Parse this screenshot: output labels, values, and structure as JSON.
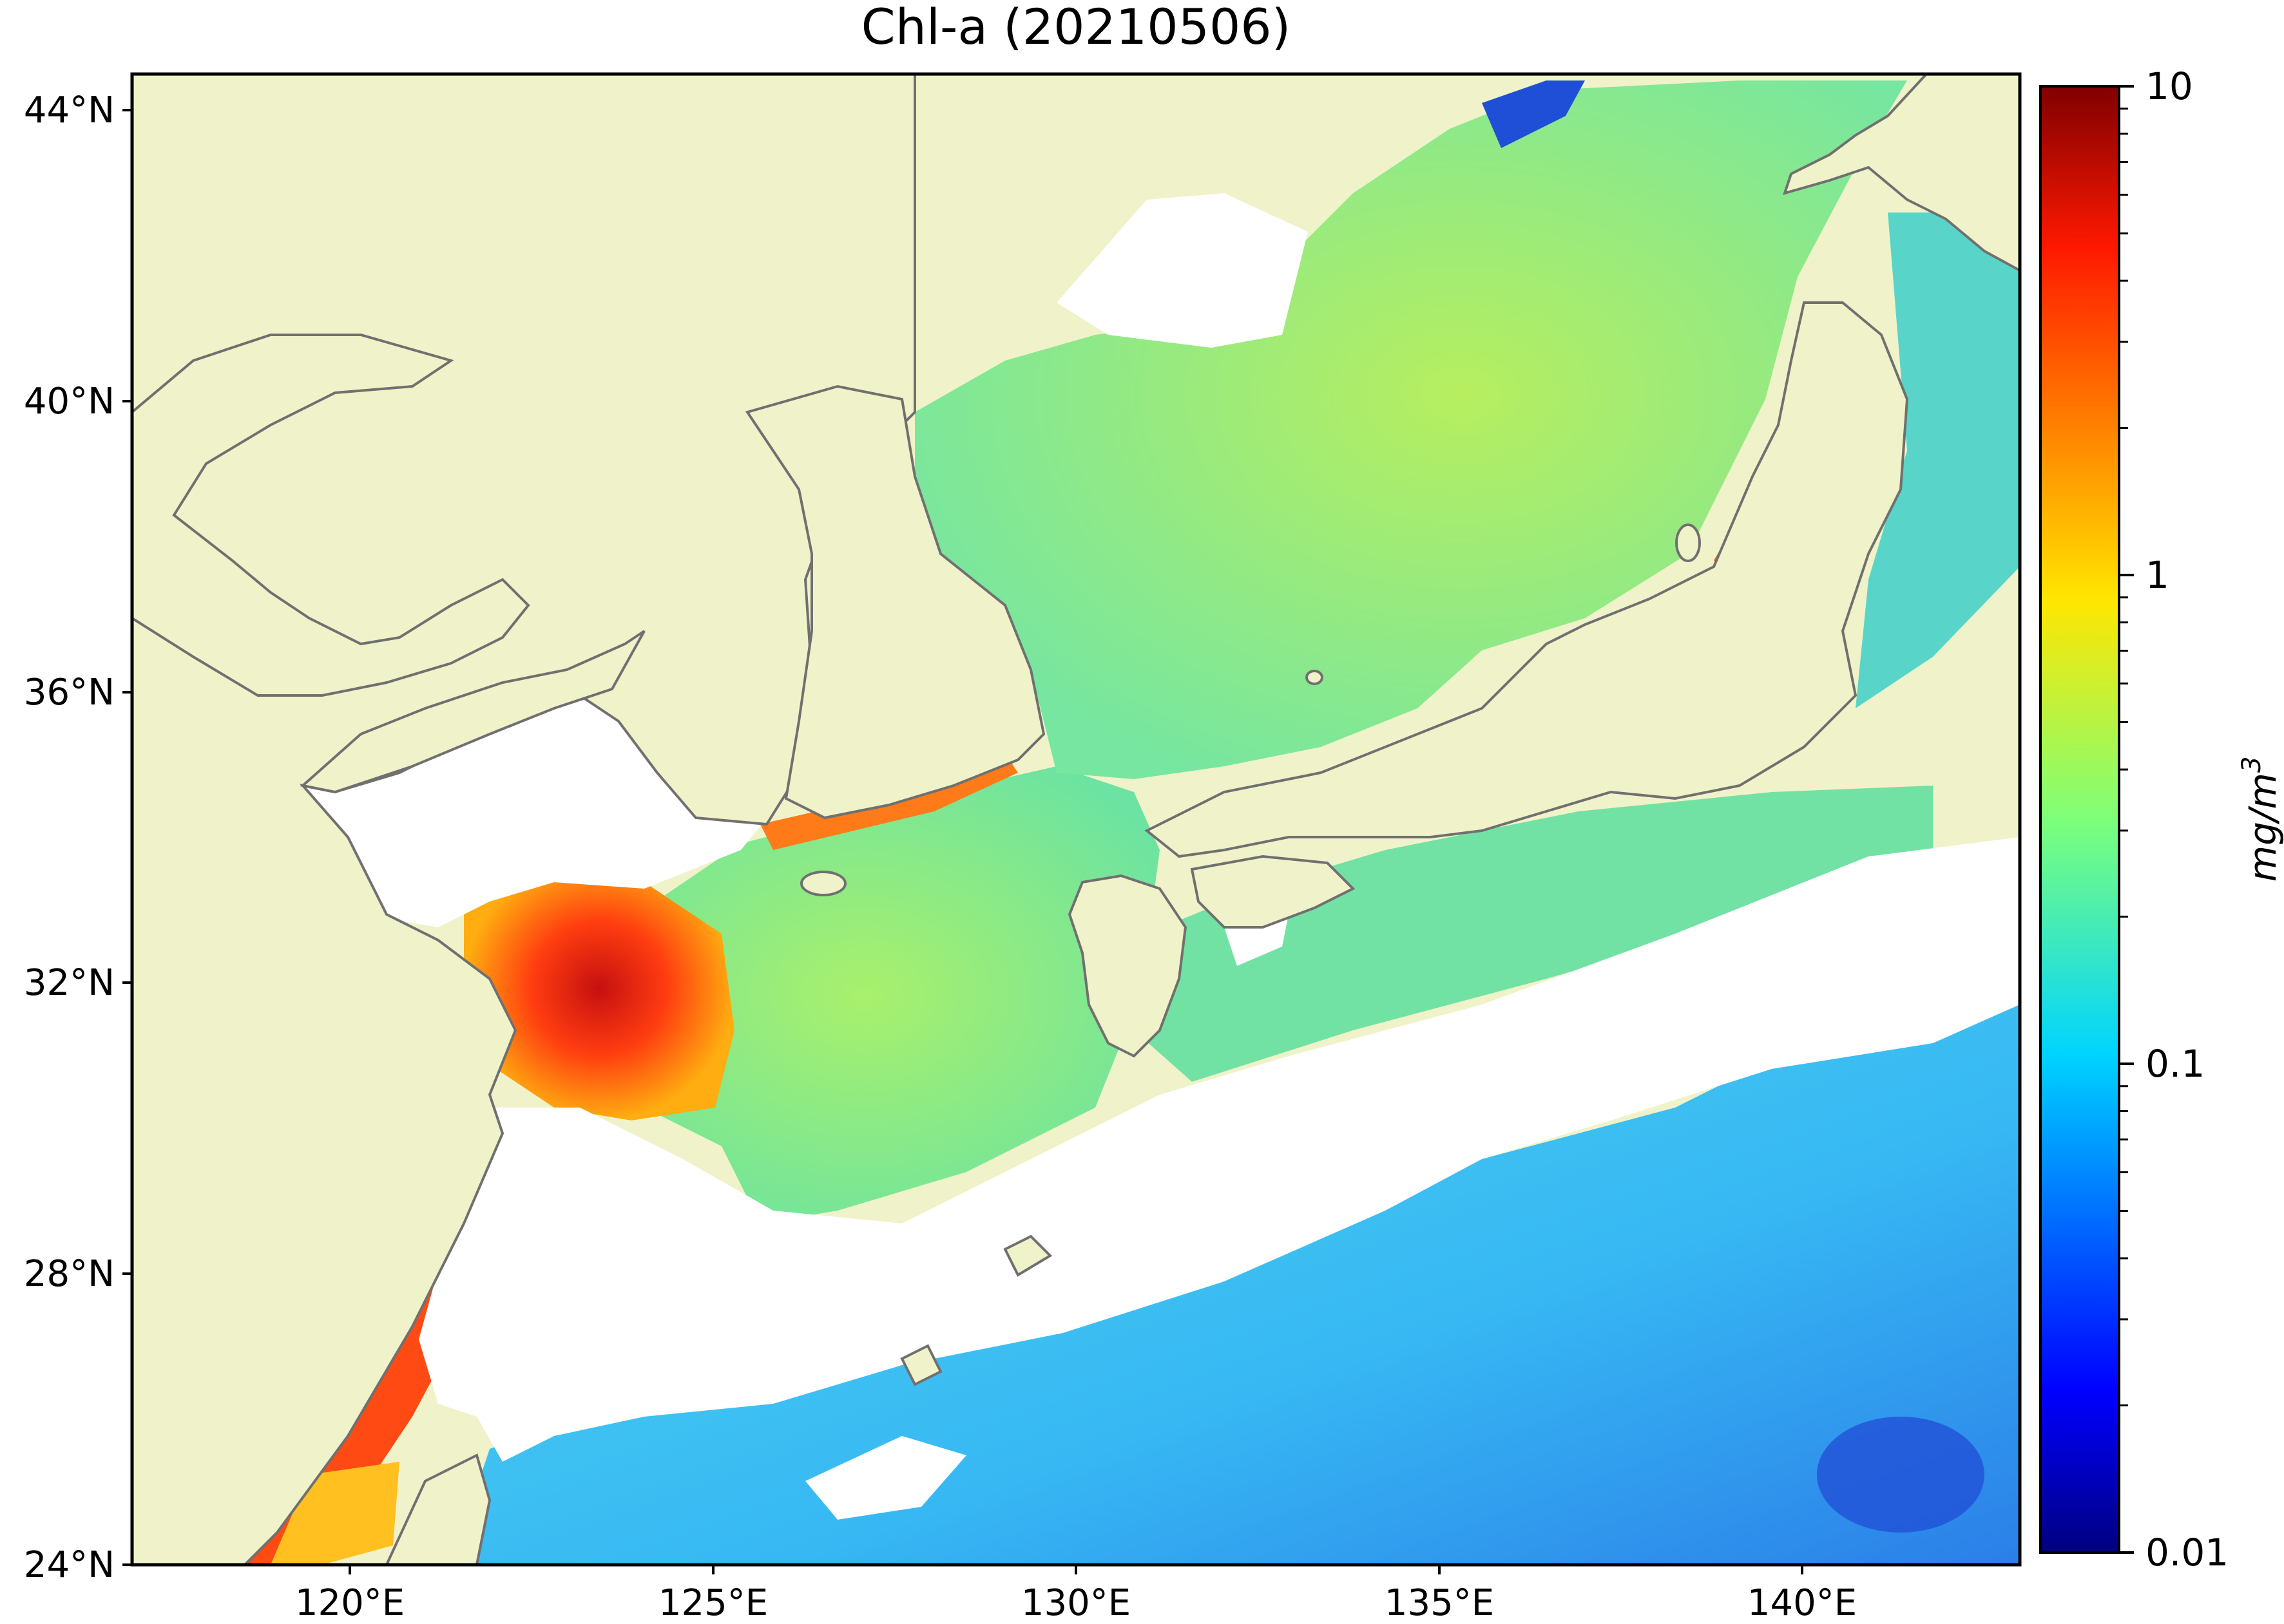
{
  "title": "Chl-a (20210506)",
  "map": {
    "type": "chlorophyll-a satellite map",
    "lon_range": [
      117,
      143
    ],
    "lat_range": [
      24,
      44.5
    ],
    "lat_ticks": [
      {
        "value": 44,
        "label": "44°N"
      },
      {
        "value": 40,
        "label": "40°N"
      },
      {
        "value": 36,
        "label": "36°N"
      },
      {
        "value": 32,
        "label": "32°N"
      },
      {
        "value": 28,
        "label": "28°N"
      },
      {
        "value": 24,
        "label": "24°N"
      }
    ],
    "lon_ticks": [
      {
        "value": 120,
        "label": "120°E"
      },
      {
        "value": 125,
        "label": "125°E"
      },
      {
        "value": 130,
        "label": "130°E"
      },
      {
        "value": 135,
        "label": "135°E"
      },
      {
        "value": 140,
        "label": "140°E"
      }
    ],
    "colors": {
      "land": "#f0f3c9",
      "no_data": "#ffffff",
      "coastline": "#707070"
    }
  },
  "colorbar": {
    "scale": "log",
    "range": [
      0.01,
      10
    ],
    "ticks": [
      {
        "value": 10,
        "label": "10"
      },
      {
        "value": 1,
        "label": "1"
      },
      {
        "value": 0.1,
        "label": "0.1"
      },
      {
        "value": 0.01,
        "label": "0.01"
      }
    ],
    "unit_main": "mg/m",
    "unit_sup": "3",
    "colormap": "jet"
  }
}
